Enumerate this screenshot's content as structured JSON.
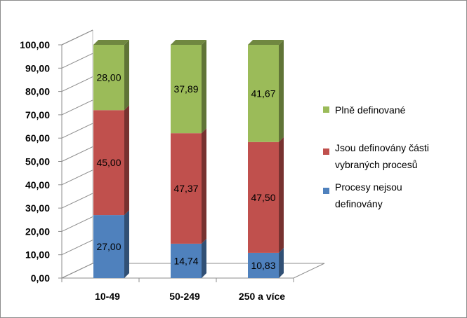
{
  "chart_data": {
    "type": "bar",
    "stacked": true,
    "three_d": true,
    "categories": [
      "10-49",
      "50-249",
      "250 a více"
    ],
    "series": [
      {
        "name": "Procesy nejsou definovány",
        "values": [
          27.0,
          14.74,
          10.83
        ],
        "labels": [
          "27,00",
          "14,74",
          "10,83"
        ],
        "color": "#4f81bd"
      },
      {
        "name": "Jsou definovány části vybraných procesů",
        "values": [
          45.0,
          47.37,
          47.5
        ],
        "labels": [
          "45,00",
          "47,37",
          "47,50"
        ],
        "color": "#c0504d"
      },
      {
        "name": "Plně definované",
        "values": [
          28.0,
          37.89,
          41.67
        ],
        "labels": [
          "28,00",
          "37,89",
          "41,67"
        ],
        "color": "#9bbb59"
      }
    ],
    "yticks": [
      "0,00",
      "10,00",
      "20,00",
      "30,00",
      "40,00",
      "50,00",
      "60,00",
      "70,00",
      "80,00",
      "90,00",
      "100,00"
    ],
    "ylim": [
      0,
      100
    ],
    "legend_position": "right",
    "legend_order": [
      2,
      1,
      0
    ],
    "legend_lines": [
      [
        "Plně definované"
      ],
      [
        "Jsou definovány části",
        "vybraných procesů"
      ],
      [
        "Procesy nejsou",
        "definovány"
      ]
    ],
    "grid": false
  }
}
